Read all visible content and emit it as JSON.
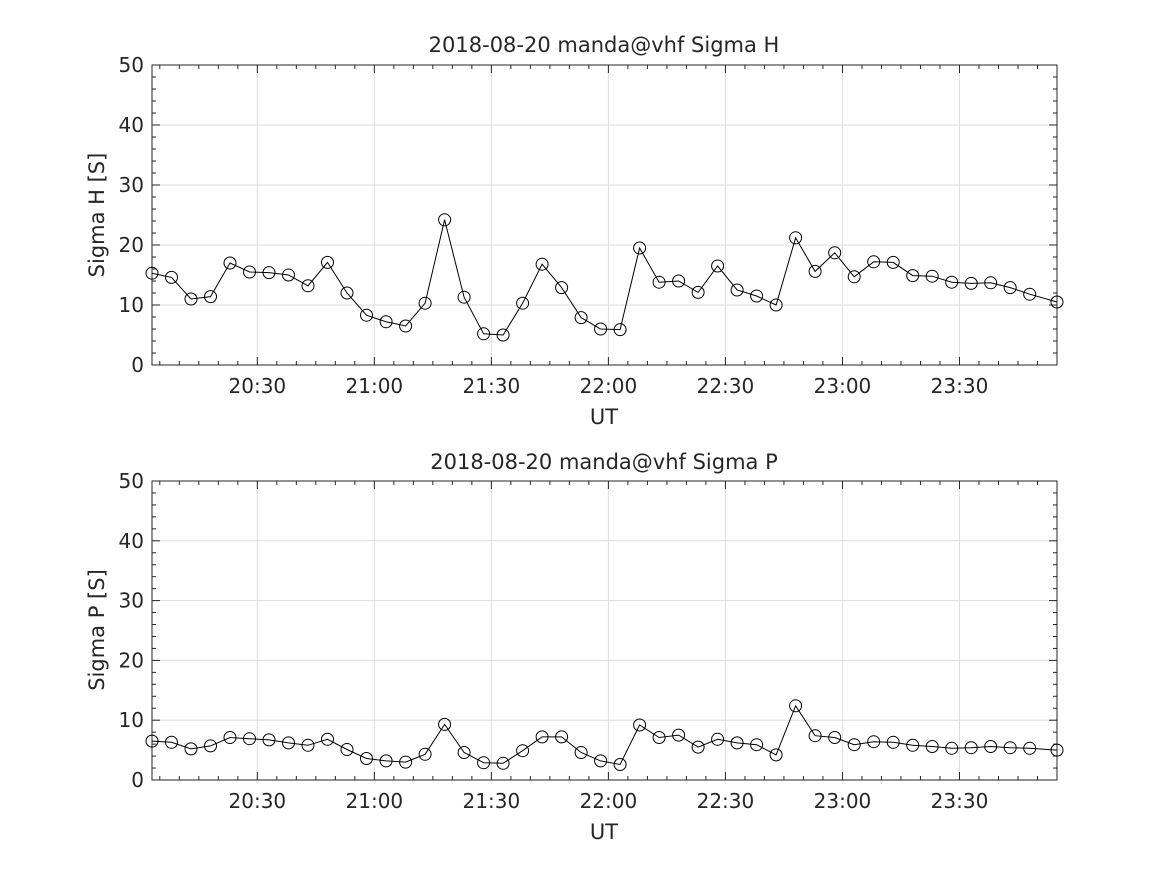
{
  "chart_data": [
    {
      "type": "line",
      "title": "2018-08-20  manda@vhf Sigma H",
      "xlabel": "UT",
      "ylabel": "Sigma H [S]",
      "xlim": [
        "20:03",
        "23:55"
      ],
      "ylim": [
        0,
        50
      ],
      "xtick_labels": [
        "20:30",
        "21:00",
        "21:30",
        "22:00",
        "22:30",
        "23:00",
        "23:30"
      ],
      "ytick_labels": [
        "0",
        "10",
        "20",
        "30",
        "40",
        "50"
      ],
      "grid": true,
      "marker": "open-circle",
      "line_color": "#000000",
      "series": [
        {
          "x": [
            "20:03",
            "20:08",
            "20:13",
            "20:18",
            "20:23",
            "20:28",
            "20:33",
            "20:38",
            "20:43",
            "20:48",
            "20:53",
            "20:58",
            "21:03",
            "21:08",
            "21:13",
            "21:18",
            "21:23",
            "21:28",
            "21:33",
            "21:38",
            "21:43",
            "21:48",
            "21:53",
            "21:58",
            "22:03",
            "22:08",
            "22:13",
            "22:18",
            "22:23",
            "22:28",
            "22:33",
            "22:38",
            "22:43",
            "22:48",
            "22:53",
            "22:58",
            "23:03",
            "23:08",
            "23:13",
            "23:18",
            "23:23",
            "23:28",
            "23:33",
            "23:38",
            "23:43",
            "23:48",
            "23:55"
          ],
          "values": [
            15.3,
            14.6,
            11.0,
            11.4,
            17.0,
            15.5,
            15.4,
            15.0,
            13.2,
            17.1,
            12.0,
            8.3,
            7.2,
            6.5,
            10.3,
            24.2,
            11.3,
            5.2,
            5.0,
            10.3,
            16.8,
            12.9,
            7.9,
            6.0,
            5.9,
            19.5,
            13.8,
            14.0,
            12.1,
            16.5,
            12.5,
            11.5,
            10.0,
            21.2,
            15.6,
            18.7,
            14.7,
            17.2,
            17.1,
            14.9,
            14.8,
            13.8,
            13.6,
            13.7,
            12.9,
            11.8,
            10.5
          ]
        }
      ]
    },
    {
      "type": "line",
      "title": "2018-08-20  manda@vhf Sigma P",
      "xlabel": "UT",
      "ylabel": "Sigma P [S]",
      "xlim": [
        "20:03",
        "23:55"
      ],
      "ylim": [
        0,
        50
      ],
      "xtick_labels": [
        "20:30",
        "21:00",
        "21:30",
        "22:00",
        "22:30",
        "23:00",
        "23:30"
      ],
      "ytick_labels": [
        "0",
        "10",
        "20",
        "30",
        "40",
        "50"
      ],
      "grid": true,
      "marker": "open-circle",
      "line_color": "#000000",
      "series": [
        {
          "x": [
            "20:03",
            "20:08",
            "20:13",
            "20:18",
            "20:23",
            "20:28",
            "20:33",
            "20:38",
            "20:43",
            "20:48",
            "20:53",
            "20:58",
            "21:03",
            "21:08",
            "21:13",
            "21:18",
            "21:23",
            "21:28",
            "21:33",
            "21:38",
            "21:43",
            "21:48",
            "21:53",
            "21:58",
            "22:03",
            "22:08",
            "22:13",
            "22:18",
            "22:23",
            "22:28",
            "22:33",
            "22:38",
            "22:43",
            "22:48",
            "22:53",
            "22:58",
            "23:03",
            "23:08",
            "23:13",
            "23:18",
            "23:23",
            "23:28",
            "23:33",
            "23:38",
            "23:43",
            "23:48",
            "23:55"
          ],
          "values": [
            6.5,
            6.3,
            5.2,
            5.7,
            7.1,
            6.9,
            6.7,
            6.2,
            5.8,
            6.8,
            5.1,
            3.6,
            3.2,
            3.0,
            4.3,
            9.3,
            4.6,
            2.9,
            2.8,
            4.9,
            7.2,
            7.2,
            4.6,
            3.2,
            2.6,
            9.2,
            7.1,
            7.5,
            5.5,
            6.8,
            6.2,
            5.9,
            4.2,
            12.4,
            7.4,
            7.1,
            5.9,
            6.4,
            6.3,
            5.8,
            5.6,
            5.3,
            5.4,
            5.6,
            5.4,
            5.3,
            5.0
          ]
        }
      ]
    }
  ]
}
